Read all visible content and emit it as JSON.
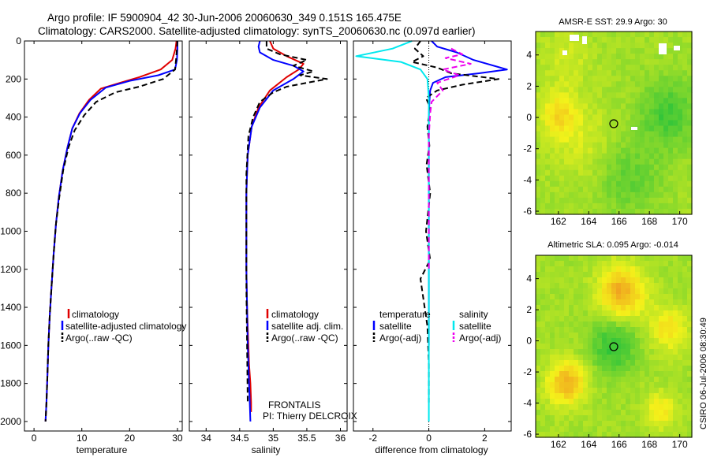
{
  "header": {
    "line1": "Argo profile: IF 5900904_42 30-Jun-2006 20060630_349 0.151S 165.475E",
    "line2": "Climatology: CARS2000. Satellite-adjusted climatology: synTS_20060630.nc (0.097d earlier)"
  },
  "side_label": "CSIRO 06-Jul-2006 08:30:49",
  "colors": {
    "climatology": "#e00000",
    "satellite": "#0000ff",
    "argo": "#000000",
    "sal_satellite": "#00e8ee",
    "sal_argo": "#ee00ee",
    "map_green": "#2fc43a",
    "map_yellow": "#f4f21a",
    "map_orange": "#f0a020"
  },
  "depth_ticks": [
    "0",
    "200",
    "400",
    "600",
    "800",
    "1000",
    "1200",
    "1400",
    "1600",
    "1800",
    "2000"
  ],
  "panels": {
    "temperature": {
      "xlabel": "temperature",
      "xticks": [
        "0",
        "10",
        "20",
        "30"
      ],
      "legend": [
        "climatology",
        "satellite-adjusted climatology",
        "Argo(..raw -QC)"
      ]
    },
    "salinity": {
      "xlabel": "salinity",
      "xticks": [
        "34",
        "34.5",
        "35",
        "35.5",
        "36"
      ],
      "legend": [
        "climatology",
        "satellite adj. clim.",
        "Argo(..raw -QC)"
      ],
      "note1": "FRONTALIS",
      "note2": "PI: Thierry DELCROIX"
    },
    "difference": {
      "xlabel": "difference from climatology",
      "xticks": [
        "-2",
        "0",
        "2"
      ],
      "legend_head_left": "temperature",
      "legend_head_right": "salinity",
      "legend_left": [
        "satellite",
        "Argo(-adj)"
      ],
      "legend_right": [
        "satellite",
        "Argo(-adj)"
      ]
    }
  },
  "maps": {
    "sst": {
      "title": "AMSR-E SST: 29.9 Argo: 30",
      "xticks": [
        "162",
        "164",
        "166",
        "168",
        "170"
      ],
      "yticks": [
        "4",
        "2",
        "0",
        "-2",
        "-4",
        "-6"
      ]
    },
    "sla": {
      "title": "Altimetric SLA: 0.095 Argo: -0.014",
      "xticks": [
        "162",
        "164",
        "166",
        "168",
        "170"
      ],
      "yticks": [
        "4",
        "2",
        "0",
        "-2",
        "-4",
        "-6"
      ]
    }
  },
  "chart_data": [
    {
      "type": "line",
      "title": "",
      "xlabel": "temperature",
      "ylabel": "",
      "xlim": [
        -2,
        31
      ],
      "ylim": [
        2050,
        0
      ],
      "series": [
        {
          "name": "climatology",
          "x": [
            29.8,
            29.6,
            28.9,
            26.5,
            22,
            18,
            14,
            11.5,
            9.5,
            8,
            7,
            6,
            5.2,
            4.6,
            4.1,
            3.7,
            3.3,
            3.0,
            2.8,
            2.6,
            2.4
          ],
          "y": [
            0,
            40,
            100,
            150,
            190,
            220,
            250,
            310,
            380,
            460,
            560,
            680,
            820,
            960,
            1120,
            1280,
            1440,
            1600,
            1760,
            1900,
            2000
          ]
        },
        {
          "name": "satellite-adjusted climatology",
          "x": [
            30.0,
            30.0,
            29.9,
            29.5,
            26,
            20,
            15,
            11.8,
            9.6,
            8,
            7,
            6,
            5.2,
            4.6,
            4.1,
            3.7,
            3.3,
            3.0,
            2.8,
            2.6,
            2.4
          ],
          "y": [
            0,
            40,
            100,
            150,
            180,
            210,
            245,
            310,
            380,
            460,
            560,
            680,
            820,
            960,
            1120,
            1280,
            1440,
            1600,
            1760,
            1900,
            2000
          ]
        },
        {
          "name": "Argo(..raw -QC)",
          "x": [
            30.0,
            29.9,
            29.7,
            29.5,
            27,
            22,
            17,
            13,
            10.5,
            8.5,
            7.2,
            6.1,
            5.3,
            4.6,
            4.1,
            3.7,
            3.3,
            3.0,
            2.8,
            2.6,
            2.4
          ],
          "y": [
            0,
            40,
            100,
            150,
            200,
            240,
            270,
            320,
            390,
            470,
            560,
            680,
            820,
            960,
            1120,
            1280,
            1440,
            1600,
            1760,
            1900,
            2000
          ]
        }
      ]
    },
    {
      "type": "line",
      "title": "",
      "xlabel": "salinity",
      "ylabel": "",
      "xlim": [
        33.75,
        36.1
      ],
      "ylim": [
        2050,
        0
      ],
      "series": [
        {
          "name": "climatology",
          "x": [
            34.95,
            35.0,
            35.2,
            35.45,
            35.38,
            35.2,
            34.95,
            34.78,
            34.68,
            34.62,
            34.6,
            34.6,
            34.6,
            34.61,
            34.62,
            34.63,
            34.64,
            34.66,
            34.67,
            34.67
          ],
          "y": [
            0,
            40,
            80,
            120,
            150,
            190,
            260,
            350,
            450,
            600,
            800,
            1000,
            1200,
            1400,
            1500,
            1600,
            1700,
            1800,
            1900,
            1950
          ]
        },
        {
          "name": "satellite adj. clim.",
          "x": [
            34.8,
            34.78,
            34.8,
            35.0,
            35.3,
            35.45,
            35.3,
            35.0,
            34.8,
            34.68,
            34.62,
            34.6,
            34.6,
            34.6,
            34.61,
            34.62,
            34.63,
            34.64,
            34.65,
            34.66
          ],
          "y": [
            0,
            30,
            60,
            100,
            130,
            160,
            200,
            260,
            350,
            450,
            600,
            800,
            1000,
            1200,
            1400,
            1600,
            1700,
            1800,
            1900,
            2000
          ]
        },
        {
          "name": "Argo(..raw -QC)",
          "x": [
            34.9,
            34.9,
            35.1,
            35.5,
            35.3,
            35.6,
            35.4,
            35.8,
            35.5,
            35.2,
            35.0,
            34.8,
            34.7,
            34.63,
            34.6,
            34.6,
            34.6,
            34.61,
            34.62
          ],
          "y": [
            0,
            40,
            70,
            100,
            130,
            160,
            180,
            200,
            220,
            240,
            270,
            320,
            400,
            500,
            700,
            1000,
            1300,
            1600,
            1900
          ]
        }
      ]
    },
    {
      "type": "line",
      "title": "",
      "xlabel": "difference from climatology",
      "ylabel": "",
      "xlim": [
        -2.7,
        2.95
      ],
      "ylim": [
        2050,
        0
      ],
      "series": [
        {
          "name": "temperature satellite",
          "x": [
            0.1,
            0.3,
            1.0,
            1.6,
            2.8,
            1.8,
            0.6,
            0.15,
            0.05,
            0.02,
            0,
            0,
            0,
            0
          ],
          "y": [
            0,
            30,
            60,
            100,
            150,
            170,
            190,
            220,
            260,
            320,
            400,
            800,
            1200,
            1600
          ]
        },
        {
          "name": "temperature Argo(-adj)",
          "x": [
            -0.3,
            -0.5,
            -0.2,
            -0.6,
            0.3,
            0.8,
            2.5,
            1.2,
            0.3,
            -0.1,
            0.05,
            -0.05,
            0.02,
            -0.08,
            0.05,
            -0.1,
            0.05,
            -0.3,
            -0.2,
            -0.05,
            0,
            0
          ],
          "y": [
            0,
            40,
            80,
            110,
            140,
            170,
            200,
            230,
            260,
            300,
            350,
            450,
            550,
            650,
            800,
            1000,
            1150,
            1250,
            1350,
            1500,
            1700,
            1900
          ]
        },
        {
          "name": "salinity satellite",
          "x": [
            -0.6,
            -1.3,
            -2.6,
            -1.0,
            -0.3,
            -0.05,
            0,
            0,
            0,
            0,
            0
          ],
          "y": [
            0,
            40,
            80,
            110,
            150,
            200,
            300,
            600,
            1000,
            1500,
            2000
          ]
        },
        {
          "name": "salinity Argo(-adj)",
          "x": [
            0.8,
            1.2,
            0.6,
            1.5,
            0.5,
            1.1,
            0.3,
            0.5,
            0.1,
            0.05,
            0,
            0,
            0
          ],
          "y": [
            40,
            70,
            90,
            120,
            150,
            180,
            220,
            260,
            320,
            380,
            500,
            800,
            1200
          ]
        }
      ]
    }
  ]
}
